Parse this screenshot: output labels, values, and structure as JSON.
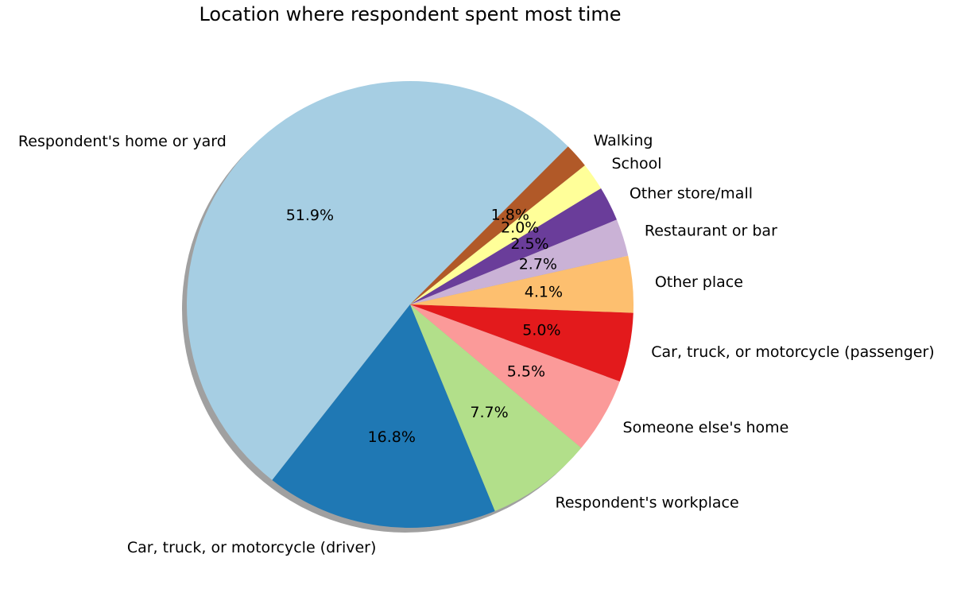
{
  "chart_data": {
    "type": "pie",
    "title": "Location where respondent spent most time",
    "start_angle_deg": 45,
    "direction": "counterclockwise",
    "shadow": true,
    "slices": [
      {
        "label": "Respondent's home or yard",
        "value": 51.9,
        "pct_text": "51.9%",
        "color": "#a6cee3"
      },
      {
        "label": "Car, truck, or motorcycle (driver)",
        "value": 16.8,
        "pct_text": "16.8%",
        "color": "#1f78b4"
      },
      {
        "label": "Respondent's workplace",
        "value": 7.7,
        "pct_text": "7.7%",
        "color": "#b2df8a"
      },
      {
        "label": "Someone else's home",
        "value": 5.5,
        "pct_text": "5.5%",
        "color": "#fb9a99"
      },
      {
        "label": "Car, truck, or motorcycle (passenger)",
        "value": 5.0,
        "pct_text": "5.0%",
        "color": "#e31a1c"
      },
      {
        "label": "Other place",
        "value": 4.1,
        "pct_text": "4.1%",
        "color": "#fdbf6f"
      },
      {
        "label": "Restaurant or bar",
        "value": 2.7,
        "pct_text": "2.7%",
        "color": "#cab2d6"
      },
      {
        "label": "Other store/mall",
        "value": 2.5,
        "pct_text": "2.5%",
        "color": "#6a3d9a"
      },
      {
        "label": "School",
        "value": 2.0,
        "pct_text": "2.0%",
        "color": "#ffff99"
      },
      {
        "label": "Walking",
        "value": 1.8,
        "pct_text": "1.8%",
        "color": "#b15928"
      }
    ]
  }
}
